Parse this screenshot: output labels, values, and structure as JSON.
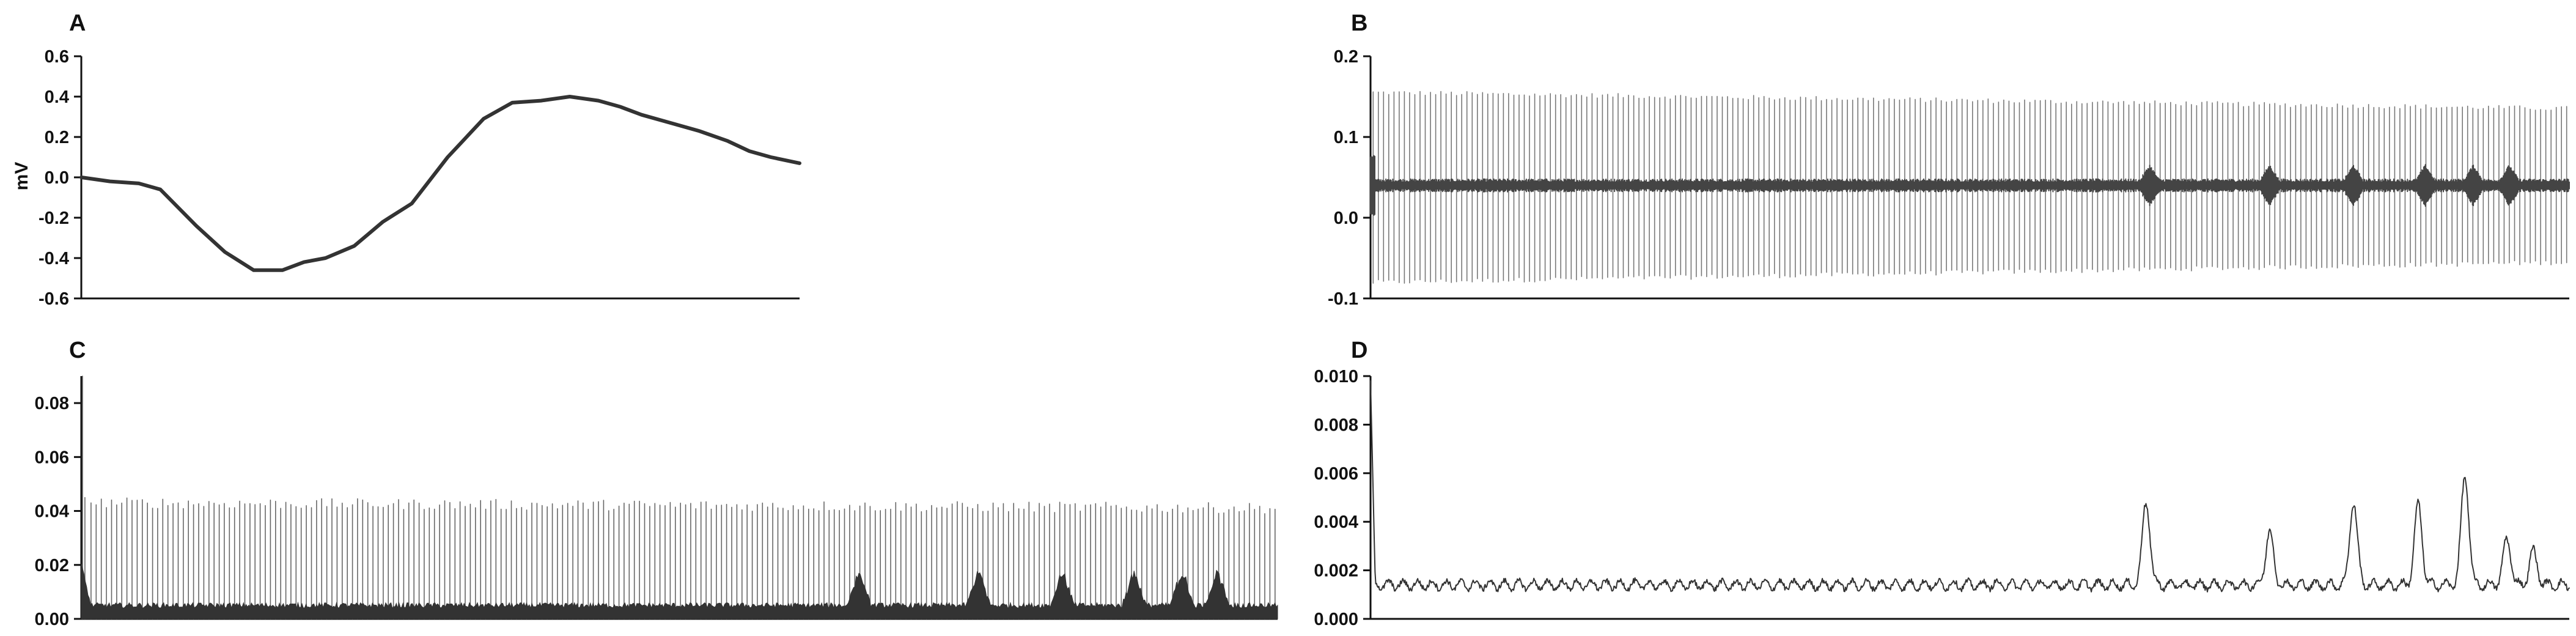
{
  "chart_data": [
    {
      "panel": "A",
      "type": "line",
      "ylabel": "mV",
      "ylim": [
        -0.6,
        0.6
      ],
      "yticks": [
        "0.6",
        "0.4",
        "0.2",
        "0.0",
        "-0.2",
        "-0.4",
        "-0.6"
      ],
      "series": [
        {
          "x": [
            0,
            0.04,
            0.08,
            0.11,
            0.16,
            0.2,
            0.24,
            0.28,
            0.31,
            0.34,
            0.38,
            0.42,
            0.46,
            0.51,
            0.56,
            0.6,
            0.64,
            0.68,
            0.72,
            0.75,
            0.78,
            0.82,
            0.86,
            0.9,
            0.93,
            0.96,
            1
          ],
          "y": [
            0.0,
            -0.02,
            -0.03,
            -0.06,
            -0.24,
            -0.37,
            -0.46,
            -0.46,
            -0.42,
            -0.4,
            -0.34,
            -0.22,
            -0.13,
            0.1,
            0.29,
            0.37,
            0.38,
            0.4,
            0.38,
            0.35,
            0.31,
            0.27,
            0.23,
            0.18,
            0.13,
            0.1,
            0.07
          ],
          "color": "#333333"
        }
      ]
    },
    {
      "panel": "B",
      "type": "line",
      "ylim": [
        -0.1,
        0.2
      ],
      "yticks": [
        "0.2",
        "0.1",
        "0.0",
        "-0.1"
      ],
      "series": [
        {
          "baseline": 0.04,
          "spike_count": 230,
          "peak_start": 0.155,
          "peak_end": 0.135,
          "trough_start": -0.08,
          "trough_end": -0.055,
          "bursts_at": [
            0.65,
            0.75,
            0.82,
            0.88,
            0.92,
            0.95
          ],
          "color": "#444444"
        }
      ]
    },
    {
      "panel": "C",
      "type": "bar",
      "ylim": [
        0,
        0.09
      ],
      "yticks": [
        "0.08",
        "0.06",
        "0.04",
        "0.02",
        "0.00"
      ],
      "series": [
        {
          "base_level": 0.004,
          "spike_count": 232,
          "spike_height_start": 0.043,
          "spike_height_end": 0.041,
          "initial_peak": 0.09,
          "bursts_at": [
            0.65,
            0.75,
            0.82,
            0.88,
            0.92,
            0.95
          ],
          "burst_height": 0.015,
          "color": "#333333"
        }
      ]
    },
    {
      "panel": "D",
      "type": "line",
      "ylim": [
        0,
        0.01
      ],
      "yticks": [
        "0.010",
        "0.008",
        "0.006",
        "0.004",
        "0.002",
        "0.000"
      ],
      "series": [
        {
          "baseline": 0.0014,
          "initial_peak": 0.0098,
          "peaks": [
            {
              "x": 0.647,
              "y": 0.0048
            },
            {
              "x": 0.75,
              "y": 0.0036
            },
            {
              "x": 0.82,
              "y": 0.0048
            },
            {
              "x": 0.874,
              "y": 0.0047
            },
            {
              "x": 0.913,
              "y": 0.0059
            },
            {
              "x": 0.948,
              "y": 0.0033
            },
            {
              "x": 0.97,
              "y": 0.0028
            }
          ],
          "color": "#333333"
        }
      ]
    }
  ]
}
